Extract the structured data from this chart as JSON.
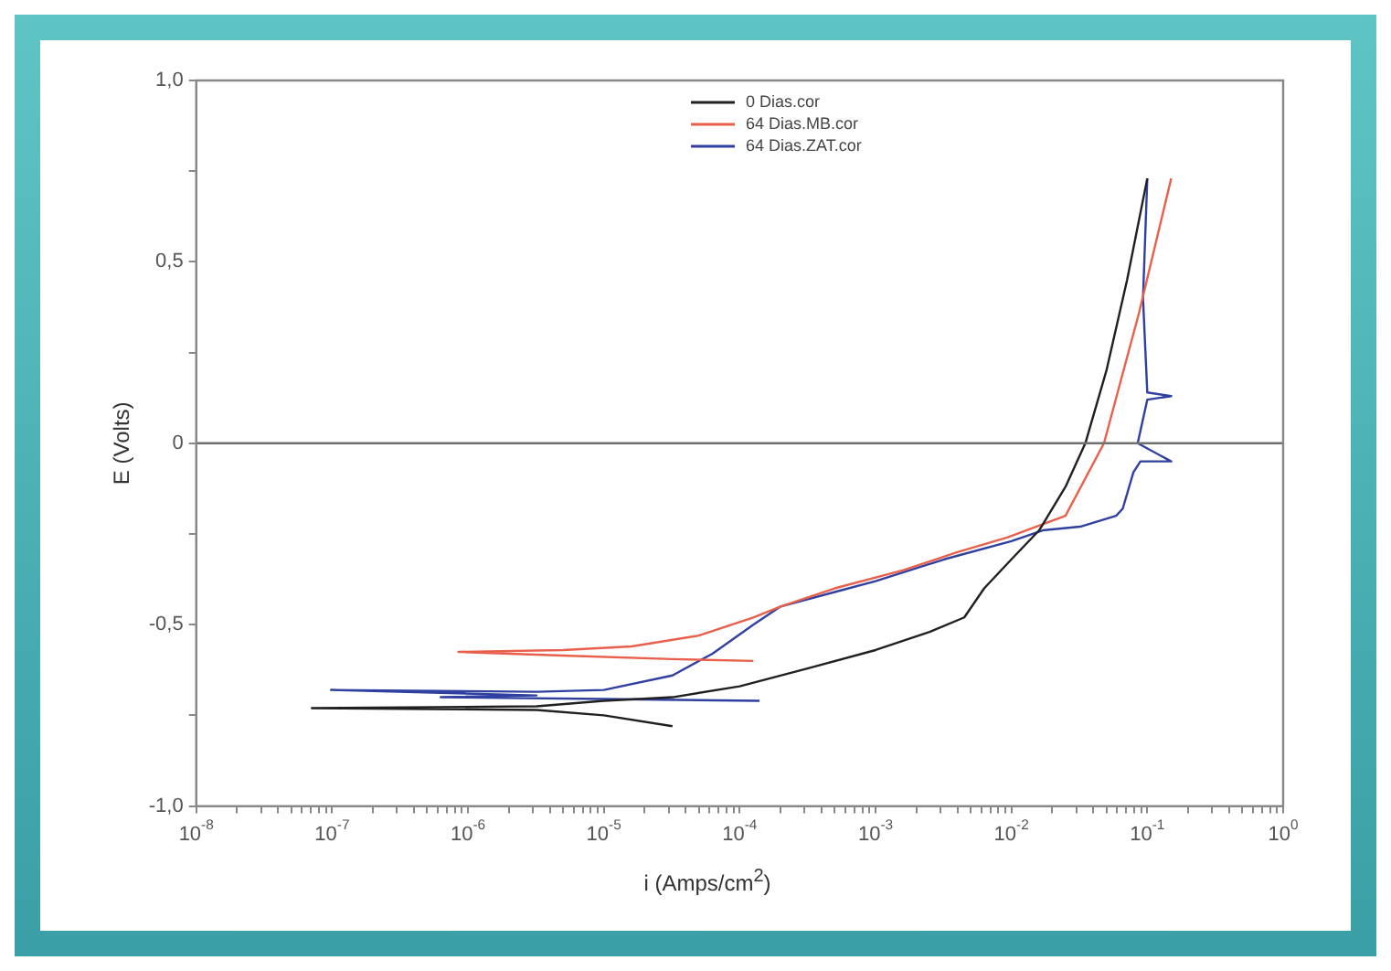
{
  "chart_data": {
    "type": "line",
    "xlabel": "i (Amps/cm$^{2}$)",
    "ylabel": "E (Volts)",
    "log": "x",
    "grid": false,
    "legend": "top",
    "marker": "none",
    "line_style": "solid",
    "xlim": [
      1e-08,
      1
    ],
    "ylim": [
      -1,
      1
    ],
    "xticks": [
      {
        "value": 1e-08,
        "label": "10$^{-8}$"
      },
      {
        "value": 2e-08,
        "label": null
      },
      {
        "value": 3e-08,
        "label": null
      },
      {
        "value": 4e-08,
        "label": null
      },
      {
        "value": 5e-08,
        "label": null
      },
      {
        "value": 6e-08,
        "label": null
      },
      {
        "value": 7e-08,
        "label": null
      },
      {
        "value": 8e-08,
        "label": null
      },
      {
        "value": 9e-08,
        "label": null
      },
      {
        "value": 1e-07,
        "label": "10$^{-7}$"
      },
      {
        "value": 2e-07,
        "label": null
      },
      {
        "value": 3e-07,
        "label": null
      },
      {
        "value": 4e-07,
        "label": null
      },
      {
        "value": 5e-07,
        "label": null
      },
      {
        "value": 6e-07,
        "label": null
      },
      {
        "value": 7e-07,
        "label": null
      },
      {
        "value": 8e-07,
        "label": null
      },
      {
        "value": 9e-07,
        "label": null
      },
      {
        "value": 1e-06,
        "label": "10$^{-6}$"
      },
      {
        "value": 2e-06,
        "label": null
      },
      {
        "value": 3e-06,
        "label": null
      },
      {
        "value": 4e-06,
        "label": null
      },
      {
        "value": 5e-06,
        "label": null
      },
      {
        "value": 6e-06,
        "label": null
      },
      {
        "value": 7e-06,
        "label": null
      },
      {
        "value": 8e-06,
        "label": null
      },
      {
        "value": 9e-06,
        "label": null
      },
      {
        "value": 1e-05,
        "label": "10$^{-5}$"
      },
      {
        "value": 2e-05,
        "label": null
      },
      {
        "value": 3e-05,
        "label": null
      },
      {
        "value": 4e-05,
        "label": null
      },
      {
        "value": 5e-05,
        "label": null
      },
      {
        "value": 6e-05,
        "label": null
      },
      {
        "value": 7e-05,
        "label": null
      },
      {
        "value": 8e-05,
        "label": null
      },
      {
        "value": 9e-05,
        "label": null
      },
      {
        "value": 0.0001,
        "label": "10$^{-4}$"
      },
      {
        "value": 0.0002,
        "label": null
      },
      {
        "value": 0.0003,
        "label": null
      },
      {
        "value": 0.0004,
        "label": null
      },
      {
        "value": 0.0005,
        "label": null
      },
      {
        "value": 0.0006,
        "label": null
      },
      {
        "value": 0.0007,
        "label": null
      },
      {
        "value": 0.0008,
        "label": null
      },
      {
        "value": 0.0009,
        "label": null
      },
      {
        "value": 0.001,
        "label": "10$^{-3}$"
      },
      {
        "value": 0.002,
        "label": null
      },
      {
        "value": 0.003,
        "label": null
      },
      {
        "value": 0.004,
        "label": null
      },
      {
        "value": 0.005,
        "label": null
      },
      {
        "value": 0.006,
        "label": null
      },
      {
        "value": 0.007,
        "label": null
      },
      {
        "value": 0.008,
        "label": null
      },
      {
        "value": 0.009,
        "label": null
      },
      {
        "value": 0.01,
        "label": "10$^{-2}$"
      },
      {
        "value": 0.02,
        "label": null
      },
      {
        "value": 0.03,
        "label": null
      },
      {
        "value": 0.04,
        "label": null
      },
      {
        "value": 0.05,
        "label": null
      },
      {
        "value": 0.06,
        "label": null
      },
      {
        "value": 0.07,
        "label": null
      },
      {
        "value": 0.08,
        "label": null
      },
      {
        "value": 0.09,
        "label": null
      },
      {
        "value": 0.1,
        "label": "10$^{-1}$"
      },
      {
        "value": 0.2,
        "label": null
      },
      {
        "value": 0.3,
        "label": null
      },
      {
        "value": 0.4,
        "label": null
      },
      {
        "value": 0.5,
        "label": null
      },
      {
        "value": 0.6,
        "label": null
      },
      {
        "value": 0.7,
        "label": null
      },
      {
        "value": 0.8,
        "label": null
      },
      {
        "value": 0.9,
        "label": null
      },
      {
        "value": 1,
        "label": "10$^{0}$"
      }
    ],
    "yticks": [
      {
        "value": -1,
        "label": "-1,0"
      },
      {
        "value": -0.75,
        "label": null
      },
      {
        "value": -0.5,
        "label": "-0,5"
      },
      {
        "value": -0.25,
        "label": null
      },
      {
        "value": 0,
        "label": "0"
      },
      {
        "value": 0.25,
        "label": null
      },
      {
        "value": 0.5,
        "label": "0,5"
      },
      {
        "value": 0.75,
        "label": null
      },
      {
        "value": 1,
        "label": "1,0"
      }
    ],
    "ref_lines": [
      {
        "axis": "y",
        "value": 0,
        "color": "#707070"
      }
    ],
    "series": [
      {
        "name": "0 Dias.cor",
        "color": "#202020",
        "x": [
          3.2e-05,
          1e-05,
          3.2e-06,
          7.1e-08,
          3.2e-06,
          1e-05,
          3.2e-05,
          0.0001,
          0.00032,
          0.001,
          0.0025,
          0.0045,
          0.0063,
          0.01,
          0.016,
          0.025,
          0.035,
          0.05,
          0.071,
          0.1
        ],
        "values": [
          -0.78,
          -0.75,
          -0.735,
          -0.73,
          -0.725,
          -0.71,
          -0.7,
          -0.67,
          -0.62,
          -0.57,
          -0.52,
          -0.48,
          -0.4,
          -0.32,
          -0.24,
          -0.12,
          0,
          0.2,
          0.45,
          0.73
        ]
      },
      {
        "name": "64 Dias.MB.cor",
        "color": "#e8604c",
        "x": [
          0.000126,
          3.2e-05,
          5e-06,
          8.5e-07,
          5e-06,
          1.6e-05,
          5e-05,
          0.000126,
          0.0002,
          0.0005,
          0.0016,
          0.004,
          0.0093,
          0.025,
          0.048,
          0.087,
          0.15
        ],
        "values": [
          -0.6,
          -0.595,
          -0.585,
          -0.575,
          -0.57,
          -0.56,
          -0.53,
          -0.48,
          -0.45,
          -0.4,
          -0.35,
          -0.3,
          -0.26,
          -0.2,
          0,
          0.36,
          0.73
        ]
      },
      {
        "name": "64 Dias.ZAT.cor",
        "color": "#3040a0",
        "x": [
          0.00014,
          1e-05,
          6.3e-07,
          3.2e-06,
          9.8e-08,
          3.2e-06,
          1e-05,
          3.2e-05,
          6.3e-05,
          0.000126,
          0.0002,
          0.0005,
          0.001,
          0.0032,
          0.01,
          0.017,
          0.032,
          0.059,
          0.066,
          0.079,
          0.089,
          0.15,
          0.085,
          0.1,
          0.15,
          0.1,
          0.093,
          0.1
        ],
        "values": [
          -0.71,
          -0.705,
          -0.7,
          -0.695,
          -0.68,
          -0.685,
          -0.68,
          -0.64,
          -0.58,
          -0.5,
          -0.45,
          -0.41,
          -0.38,
          -0.32,
          -0.27,
          -0.24,
          -0.23,
          -0.2,
          -0.18,
          -0.08,
          -0.05,
          -0.05,
          0,
          0.12,
          0.13,
          0.14,
          0.4,
          0.73
        ]
      }
    ]
  }
}
